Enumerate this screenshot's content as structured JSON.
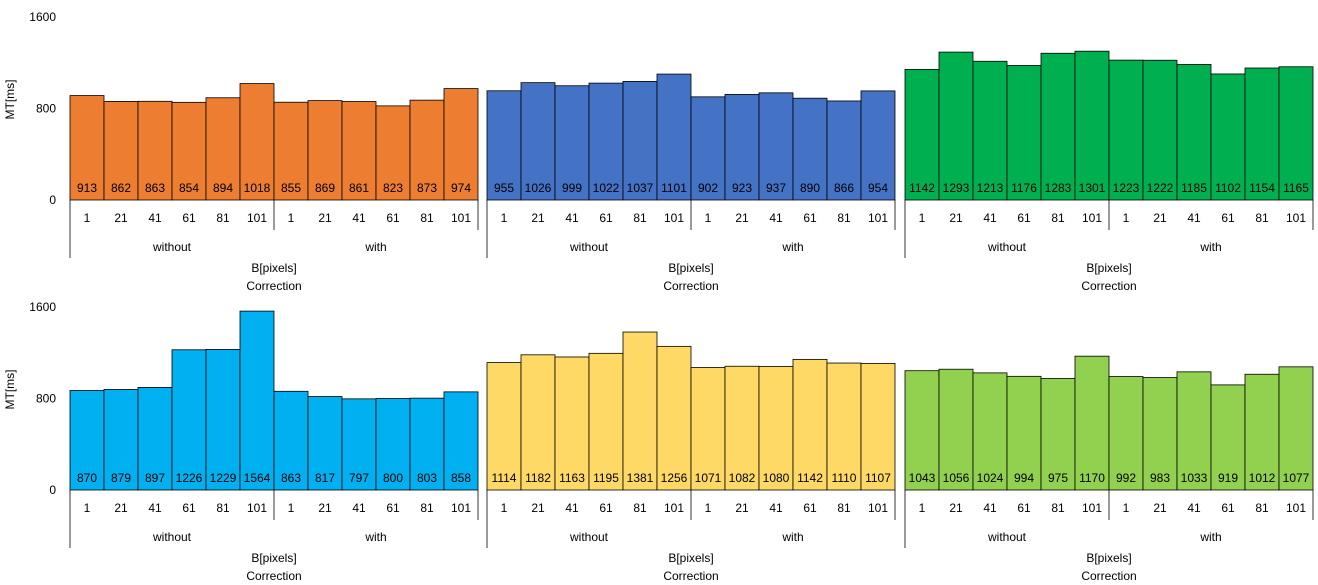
{
  "chart_data": {
    "type": "bar",
    "ylabel": "MT[ms]",
    "ylim": [
      0,
      1600
    ],
    "yticks": [
      "0",
      "800",
      "1600"
    ],
    "xlabel": "B[pixels]",
    "group_label": "Correction",
    "groups": [
      "without",
      "with"
    ],
    "categories": [
      "1",
      "21",
      "41",
      "61",
      "81",
      "101",
      "1",
      "21",
      "41",
      "61",
      "81",
      "101"
    ],
    "panels": [
      {
        "color": "#ED7D31",
        "values": [
          913,
          862,
          863,
          854,
          894,
          1018,
          855,
          869,
          861,
          823,
          873,
          974
        ]
      },
      {
        "color": "#4472C4",
        "values": [
          955,
          1026,
          999,
          1022,
          1037,
          1101,
          902,
          923,
          937,
          890,
          866,
          954
        ]
      },
      {
        "color": "#00B050",
        "values": [
          1142,
          1293,
          1213,
          1176,
          1283,
          1301,
          1223,
          1222,
          1185,
          1102,
          1154,
          1165
        ]
      },
      {
        "color": "#00B0F0",
        "values": [
          870,
          879,
          897,
          1226,
          1229,
          1564,
          863,
          817,
          797,
          800,
          803,
          858
        ]
      },
      {
        "color": "#FFD966",
        "values": [
          1114,
          1182,
          1163,
          1195,
          1381,
          1256,
          1071,
          1082,
          1080,
          1142,
          1110,
          1107
        ]
      },
      {
        "color": "#92D050",
        "values": [
          1043,
          1056,
          1024,
          994,
          975,
          1170,
          992,
          983,
          1033,
          919,
          1012,
          1077
        ]
      }
    ]
  }
}
